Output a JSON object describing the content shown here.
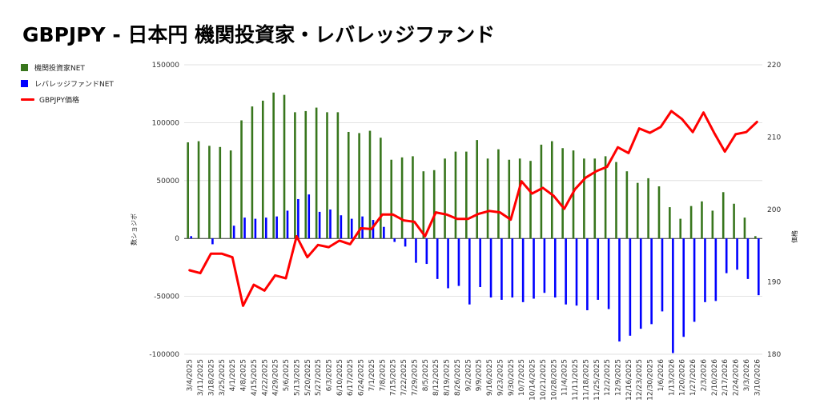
{
  "title": "GBPJPY - 日本円 機関投資家・レバレッジファンド",
  "legend": [
    {
      "label": "機関投資家NET",
      "color": "#38761d",
      "shape": "box"
    },
    {
      "label": "レバレッジファンドNET",
      "color": "#0000ff",
      "shape": "box"
    },
    {
      "label": "GBPJPY価格",
      "color": "#ff0000",
      "shape": "line"
    }
  ],
  "chart_data": {
    "type": "bar+line",
    "title": "GBPJPY - 日本円 機関投資家・レバレッジファンド",
    "ylabel": "数ショジボ",
    "y2label": "価格",
    "ylim": [
      -100000,
      150000
    ],
    "y2lim": [
      180,
      220
    ],
    "yticks": [
      150000,
      100000,
      50000,
      0,
      -50000,
      -100000
    ],
    "y2ticks": [
      220,
      210,
      200,
      190,
      180
    ],
    "grid": true,
    "legend_position": "left",
    "categories": [
      "3/4/2025",
      "3/11/2025",
      "3/18/2025",
      "3/25/2025",
      "4/1/2025",
      "4/8/2025",
      "4/15/2025",
      "4/22/2025",
      "4/29/2025",
      "5/6/2025",
      "5/13/2025",
      "5/20/2025",
      "5/27/2025",
      "6/3/2025",
      "6/10/2025",
      "6/17/2025",
      "6/24/2025",
      "7/1/2025",
      "7/8/2025",
      "7/15/2025",
      "7/22/2025",
      "7/29/2025",
      "8/5/2025",
      "8/12/2025",
      "8/19/2025",
      "8/26/2025",
      "9/2/2025",
      "9/9/2025",
      "9/16/2025",
      "9/23/2025",
      "9/30/2025",
      "10/7/2025",
      "10/14/2025",
      "10/21/2025",
      "10/28/2025",
      "11/4/2025",
      "11/11/2025",
      "11/18/2025",
      "11/25/2025",
      "12/2/2025",
      "12/9/2025",
      "12/16/2025",
      "12/23/2025",
      "12/30/2025",
      "1/6/2026",
      "1/13/2026",
      "1/20/2026",
      "1/27/2026",
      "2/3/2026",
      "2/10/2026",
      "2/17/2026",
      "2/24/2026",
      "3/3/2026",
      "3/10/2026"
    ],
    "series": [
      {
        "name": "機関投資家NET",
        "type": "bar",
        "color": "#38761d",
        "values": [
          83000,
          84000,
          80000,
          79000,
          76000,
          102000,
          114000,
          119000,
          126000,
          124000,
          109000,
          110000,
          113000,
          109000,
          109000,
          92000,
          91000,
          93000,
          87000,
          68000,
          70000,
          71000,
          58000,
          59000,
          69000,
          75000,
          75000,
          85000,
          69000,
          77000,
          68000,
          69000,
          67000,
          81000,
          84000,
          78000,
          76000,
          69000,
          69000,
          71000,
          66000,
          58000,
          48000,
          52000,
          45000,
          27000,
          17000,
          28000,
          32000,
          24000,
          40000,
          30000,
          18000,
          2000
        ]
      },
      {
        "name": "レバレッジファンドNET",
        "type": "bar",
        "color": "#0000ff",
        "values": [
          2000,
          0,
          -5000,
          0,
          11000,
          18000,
          17000,
          18000,
          19000,
          24000,
          34000,
          38000,
          23000,
          25000,
          20000,
          17000,
          19000,
          16000,
          10000,
          -3000,
          -7000,
          -21000,
          -22000,
          -35000,
          -43000,
          -41000,
          -57000,
          -42000,
          -51000,
          -53000,
          -51000,
          -55000,
          -52000,
          -47000,
          -51000,
          -57000,
          -58000,
          -62000,
          -53000,
          -61000,
          -89000,
          -84000,
          -78000,
          -74000,
          -63000,
          -99000,
          -85000,
          -72000,
          -55000,
          -54000,
          -30000,
          -27000,
          -35000,
          -49000
        ]
      },
      {
        "name": "GBPJPY価格",
        "type": "line",
        "axis": "right",
        "color": "#ff0000",
        "values": [
          191.6,
          191.2,
          193.9,
          193.9,
          193.4,
          186.7,
          189.6,
          188.8,
          190.9,
          190.5,
          196.3,
          193.4,
          195.1,
          194.8,
          195.7,
          195.2,
          197.4,
          197.3,
          199.3,
          199.3,
          198.5,
          198.3,
          196.3,
          199.6,
          199.3,
          198.7,
          198.7,
          199.4,
          199.8,
          199.6,
          198.6,
          203.9,
          202.2,
          203.0,
          201.9,
          200.1,
          202.8,
          204.4,
          205.3,
          205.9,
          208.6,
          207.8,
          211.2,
          210.6,
          211.4,
          213.6,
          212.5,
          210.7,
          213.4,
          210.6,
          208.0,
          210.4,
          210.7,
          212.1
        ]
      }
    ]
  }
}
